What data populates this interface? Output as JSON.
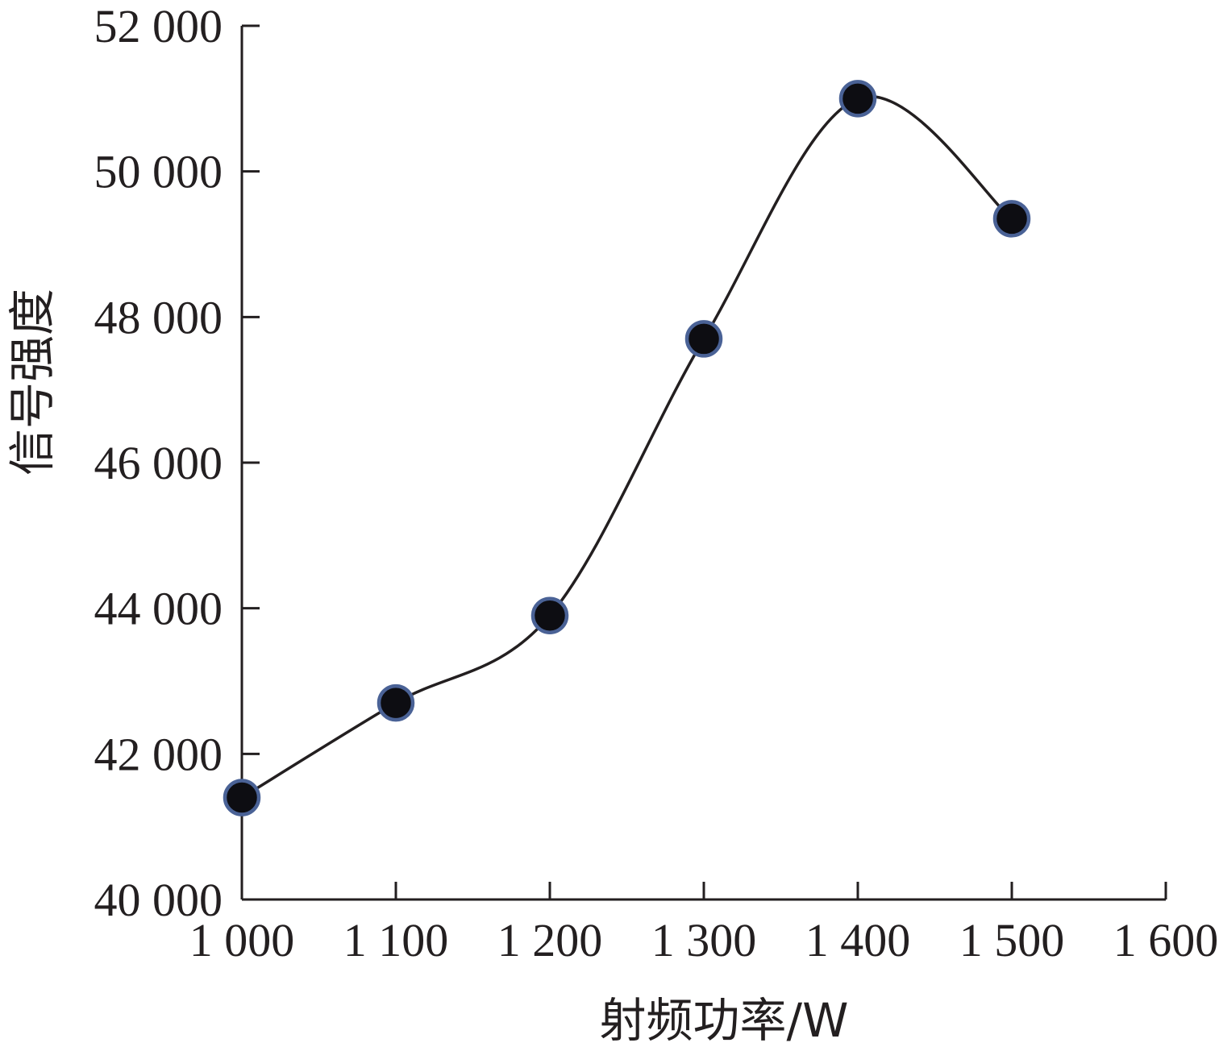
{
  "chart_data": {
    "type": "line",
    "title": "",
    "xlabel": "射频功率/W",
    "ylabel": "信号强度",
    "x": [
      1000,
      1100,
      1200,
      1300,
      1400,
      1500
    ],
    "series": [
      {
        "values": [
          41400,
          42700,
          43900,
          47700,
          51000,
          49350
        ]
      }
    ],
    "xlim": [
      1000,
      1600
    ],
    "ylim": [
      40000,
      52000
    ],
    "xticks": [
      1000,
      1100,
      1200,
      1300,
      1400,
      1500,
      1600
    ],
    "xtick_labels": [
      "1 000",
      "1 100",
      "1 200",
      "1 300",
      "1 400",
      "1 500",
      "1 600"
    ],
    "yticks": [
      40000,
      42000,
      44000,
      46000,
      48000,
      50000,
      52000
    ],
    "ytick_labels": [
      "40 000",
      "42 000",
      "44 000",
      "46 000",
      "48 000",
      "50 000",
      "52 000"
    ],
    "grid": false,
    "smooth_line": true,
    "colors": {
      "axis": "#231f20",
      "line": "#231f20",
      "marker_fill": "#0d0d12",
      "marker_stroke": "#4a6296"
    }
  }
}
